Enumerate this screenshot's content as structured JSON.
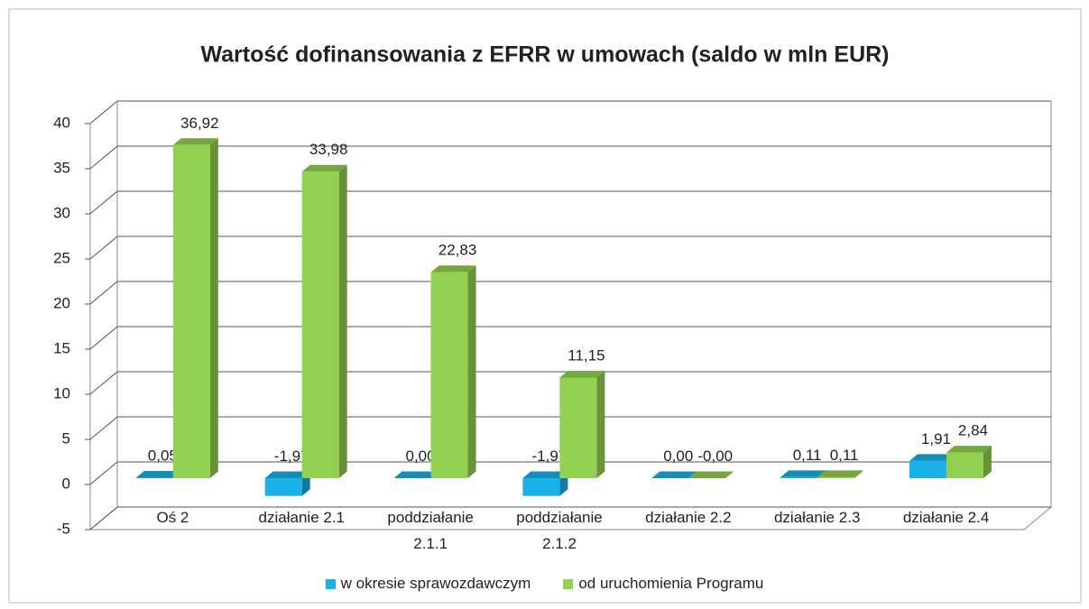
{
  "chart_data": {
    "type": "bar3d",
    "title": "Wartość dofinansowania z EFRR w umowach (saldo w mln EUR)",
    "categories": [
      "Oś 2",
      "działanie 2.1",
      "poddziałanie 2.1.1",
      "poddziałanie 2.1.2",
      "działanie 2.2",
      "działanie 2.3",
      "działanie 2.4"
    ],
    "series": [
      {
        "name": "w okresie sprawozdawczym",
        "color": "#1ab0e8",
        "values": [
          0.05,
          -1.97,
          0.0,
          -1.97,
          0.0,
          0.11,
          1.91
        ],
        "value_labels": [
          "0,05",
          "-1,97",
          "0,00",
          "-1,97",
          "0,00",
          "0,11",
          "1,91"
        ]
      },
      {
        "name": "od uruchomienia Programu",
        "color": "#92d050",
        "values": [
          36.92,
          33.98,
          22.83,
          11.15,
          0.0,
          0.11,
          2.84
        ],
        "value_labels": [
          "36,92",
          "33,98",
          "22,83",
          "11,15",
          "-0,00",
          "0,11",
          "2,84"
        ]
      }
    ],
    "ylim": [
      -5,
      40
    ],
    "yticks": [
      -5,
      0,
      5,
      10,
      15,
      20,
      25,
      30,
      35,
      40
    ],
    "grid": true,
    "legend": "bottom"
  }
}
